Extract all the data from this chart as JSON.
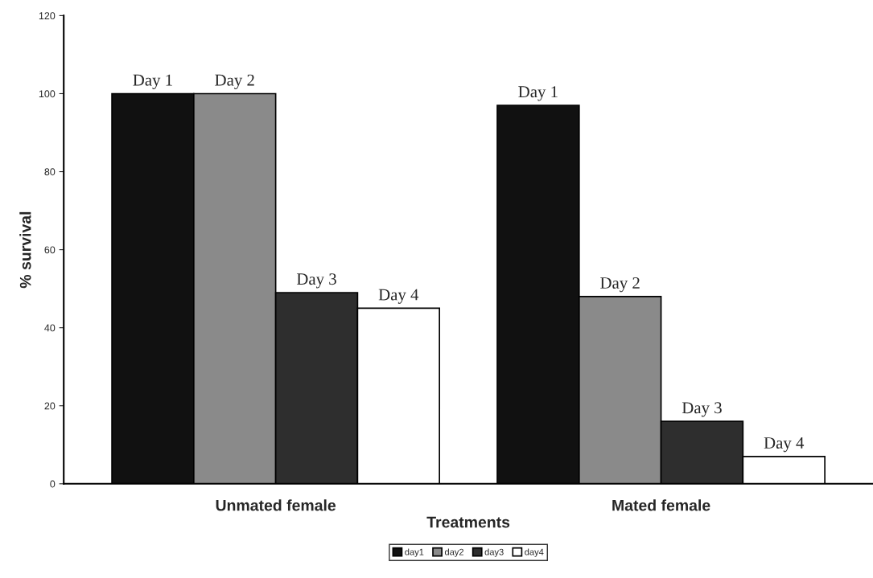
{
  "chart_data": {
    "type": "bar",
    "xlabel": "Treatments",
    "ylabel": "% survival",
    "categories": [
      "Unmated female",
      "Mated female"
    ],
    "series": [
      {
        "name": "day1",
        "color": "#111111",
        "values": [
          100,
          97
        ],
        "value_labels": [
          "Day 1",
          "Day 1"
        ]
      },
      {
        "name": "day2",
        "color": "#8a8a8a",
        "values": [
          100,
          48
        ],
        "value_labels": [
          "Day 2",
          "Day 2"
        ]
      },
      {
        "name": "day3",
        "color": "#2e2e2e",
        "values": [
          49,
          16
        ],
        "value_labels": [
          "Day 3",
          "Day 3"
        ]
      },
      {
        "name": "day4",
        "color": "#ffffff",
        "values": [
          45,
          7
        ],
        "value_labels": [
          "Day 4",
          "Day 4"
        ]
      }
    ],
    "ylim": [
      0,
      120
    ],
    "yticks": [
      0,
      20,
      40,
      60,
      80,
      100,
      120
    ],
    "grid": false,
    "legend": "bottom"
  }
}
